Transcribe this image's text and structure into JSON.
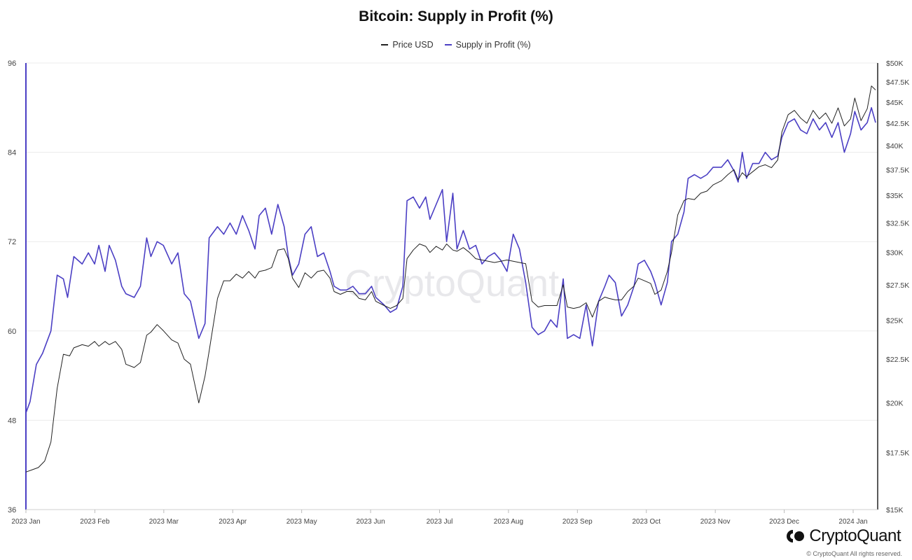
{
  "title": "Bitcoin: Supply in Profit (%)",
  "legend": [
    {
      "name": "Price USD",
      "color": "#222222"
    },
    {
      "name": "Supply in Profit (%)",
      "color": "#4b3fc4"
    }
  ],
  "watermark": "CryptoQuant",
  "brand": "CryptoQuant",
  "copyright": "© CryptoQuant All rights reserved.",
  "chart_data": {
    "type": "line",
    "grid": true,
    "legend_position": "top-center",
    "x_ticks": [
      "2023 Jan",
      "2023 Feb",
      "2023 Mar",
      "2023 Apr",
      "2023 May",
      "2023 Jun",
      "2023 Jul",
      "2023 Aug",
      "2023 Sep",
      "2023 Oct",
      "2023 Nov",
      "2023 Dec",
      "2024 Jan"
    ],
    "y_left": {
      "ticks": [
        "96",
        "84",
        "72",
        "60",
        "48",
        "36"
      ],
      "range": [
        36,
        96
      ]
    },
    "y_right": {
      "ticks": [
        "$50K",
        "$47.5K",
        "$45K",
        "$42.5K",
        "$40K",
        "$37.5K",
        "$35K",
        "$32.5K",
        "$30K",
        "$27.5K",
        "$25K",
        "$22.5K",
        "$20K",
        "$17.5K",
        "$15K"
      ],
      "range": [
        15000,
        50000
      ],
      "scale": "log"
    },
    "series": [
      {
        "name": "Supply in Profit (%)",
        "axis": "left",
        "color": "#4b3fc4",
        "points": [
          [
            0,
            49.0
          ],
          [
            2,
            50.5
          ],
          [
            5,
            55.5
          ],
          [
            8,
            57.0
          ],
          [
            12,
            60.0
          ],
          [
            15,
            67.5
          ],
          [
            18,
            67.0
          ],
          [
            20,
            64.5
          ],
          [
            23,
            70.0
          ],
          [
            27,
            69.0
          ],
          [
            30,
            70.5
          ],
          [
            33,
            69.0
          ],
          [
            35,
            71.5
          ],
          [
            38,
            68.0
          ],
          [
            40,
            71.5
          ],
          [
            43,
            69.5
          ],
          [
            46,
            66.0
          ],
          [
            48,
            65.0
          ],
          [
            52,
            64.5
          ],
          [
            55,
            66.0
          ],
          [
            58,
            72.5
          ],
          [
            60,
            70.0
          ],
          [
            63,
            72.0
          ],
          [
            66,
            71.5
          ],
          [
            70,
            69.0
          ],
          [
            73,
            70.5
          ],
          [
            76,
            65.0
          ],
          [
            79,
            64.0
          ],
          [
            83,
            59.0
          ],
          [
            86,
            61.0
          ],
          [
            88,
            72.5
          ],
          [
            92,
            74.0
          ],
          [
            95,
            73.0
          ],
          [
            98,
            74.5
          ],
          [
            101,
            73.0
          ],
          [
            104,
            75.5
          ],
          [
            107,
            73.5
          ],
          [
            110,
            71.0
          ],
          [
            112,
            75.5
          ],
          [
            115,
            76.5
          ],
          [
            118,
            73.0
          ],
          [
            121,
            77.0
          ],
          [
            124,
            74.0
          ],
          [
            126,
            70.0
          ],
          [
            128,
            67.5
          ],
          [
            131,
            69.0
          ],
          [
            134,
            73.0
          ],
          [
            137,
            74.0
          ],
          [
            140,
            70.0
          ],
          [
            143,
            70.5
          ],
          [
            146,
            68.0
          ],
          [
            148,
            66.0
          ],
          [
            151,
            65.5
          ],
          [
            154,
            65.5
          ],
          [
            157,
            66.0
          ],
          [
            160,
            65.0
          ],
          [
            163,
            65.0
          ],
          [
            166,
            66.0
          ],
          [
            168,
            64.5
          ],
          [
            172,
            63.5
          ],
          [
            175,
            62.5
          ],
          [
            178,
            63.0
          ],
          [
            181,
            66.0
          ],
          [
            183,
            77.5
          ],
          [
            186,
            78.0
          ],
          [
            189,
            76.5
          ],
          [
            192,
            78.0
          ],
          [
            194,
            75.0
          ],
          [
            197,
            77.0
          ],
          [
            200,
            79.0
          ],
          [
            202,
            72.0
          ],
          [
            205,
            78.5
          ],
          [
            207,
            71.0
          ],
          [
            210,
            73.5
          ],
          [
            213,
            71.0
          ],
          [
            216,
            71.5
          ],
          [
            219,
            69.0
          ],
          [
            222,
            70.0
          ],
          [
            225,
            70.5
          ],
          [
            228,
            69.5
          ],
          [
            231,
            68.0
          ],
          [
            234,
            73.0
          ],
          [
            237,
            71.0
          ],
          [
            240,
            66.5
          ],
          [
            243,
            60.5
          ],
          [
            246,
            59.5
          ],
          [
            249,
            60.0
          ],
          [
            252,
            61.5
          ],
          [
            255,
            60.5
          ],
          [
            258,
            67.0
          ],
          [
            260,
            59.0
          ],
          [
            263,
            59.5
          ],
          [
            266,
            59.0
          ],
          [
            269,
            63.5
          ],
          [
            272,
            58.0
          ],
          [
            275,
            64.0
          ],
          [
            278,
            66.0
          ],
          [
            280,
            67.5
          ],
          [
            283,
            66.5
          ],
          [
            286,
            62.0
          ],
          [
            289,
            63.5
          ],
          [
            292,
            66.0
          ],
          [
            294,
            69.0
          ],
          [
            297,
            69.5
          ],
          [
            300,
            68.0
          ],
          [
            302,
            66.5
          ],
          [
            305,
            63.5
          ],
          [
            308,
            66.5
          ],
          [
            310,
            72.0
          ],
          [
            313,
            73.0
          ],
          [
            316,
            76.0
          ],
          [
            318,
            80.5
          ],
          [
            321,
            81.0
          ],
          [
            324,
            80.5
          ],
          [
            327,
            81.0
          ],
          [
            330,
            82.0
          ],
          [
            334,
            82.0
          ],
          [
            337,
            83.0
          ],
          [
            340,
            81.5
          ],
          [
            342,
            80.0
          ],
          [
            344,
            84.0
          ],
          [
            346,
            80.5
          ],
          [
            349,
            82.5
          ],
          [
            352,
            82.5
          ],
          [
            355,
            84.0
          ],
          [
            358,
            83.0
          ],
          [
            361,
            83.5
          ],
          [
            363,
            86.0
          ],
          [
            366,
            88.0
          ],
          [
            369,
            88.5
          ],
          [
            372,
            87.0
          ],
          [
            375,
            86.5
          ],
          [
            378,
            88.5
          ],
          [
            381,
            87.0
          ],
          [
            384,
            88.0
          ],
          [
            387,
            86.0
          ],
          [
            390,
            88.0
          ],
          [
            393,
            84.0
          ],
          [
            396,
            86.5
          ],
          [
            398,
            89.5
          ],
          [
            401,
            87.0
          ],
          [
            404,
            88.0
          ],
          [
            406,
            90.0
          ],
          [
            408,
            88.0
          ]
        ]
      },
      {
        "name": "Price USD",
        "axis": "right",
        "color": "#222222",
        "points": [
          [
            0,
            16600
          ],
          [
            3,
            16700
          ],
          [
            6,
            16800
          ],
          [
            9,
            17100
          ],
          [
            12,
            18000
          ],
          [
            15,
            20800
          ],
          [
            18,
            22800
          ],
          [
            21,
            22700
          ],
          [
            23,
            23200
          ],
          [
            27,
            23400
          ],
          [
            30,
            23300
          ],
          [
            33,
            23600
          ],
          [
            35,
            23300
          ],
          [
            38,
            23600
          ],
          [
            40,
            23400
          ],
          [
            43,
            23600
          ],
          [
            46,
            23100
          ],
          [
            48,
            22200
          ],
          [
            52,
            22000
          ],
          [
            55,
            22300
          ],
          [
            58,
            24000
          ],
          [
            60,
            24200
          ],
          [
            63,
            24700
          ],
          [
            66,
            24300
          ],
          [
            70,
            23700
          ],
          [
            73,
            23500
          ],
          [
            76,
            22500
          ],
          [
            79,
            22200
          ],
          [
            83,
            20000
          ],
          [
            86,
            21500
          ],
          [
            88,
            23000
          ],
          [
            92,
            26500
          ],
          [
            95,
            27800
          ],
          [
            98,
            27800
          ],
          [
            101,
            28300
          ],
          [
            104,
            28000
          ],
          [
            107,
            28500
          ],
          [
            110,
            28000
          ],
          [
            112,
            28500
          ],
          [
            115,
            28600
          ],
          [
            118,
            28800
          ],
          [
            121,
            30200
          ],
          [
            124,
            30300
          ],
          [
            126,
            29500
          ],
          [
            128,
            28000
          ],
          [
            131,
            27300
          ],
          [
            134,
            28400
          ],
          [
            137,
            28000
          ],
          [
            140,
            28500
          ],
          [
            143,
            28600
          ],
          [
            146,
            28000
          ],
          [
            148,
            27000
          ],
          [
            151,
            26800
          ],
          [
            154,
            27000
          ],
          [
            157,
            27000
          ],
          [
            160,
            26500
          ],
          [
            163,
            26400
          ],
          [
            166,
            27000
          ],
          [
            168,
            26300
          ],
          [
            172,
            26000
          ],
          [
            175,
            25800
          ],
          [
            178,
            26000
          ],
          [
            181,
            26500
          ],
          [
            183,
            29500
          ],
          [
            186,
            30200
          ],
          [
            189,
            30700
          ],
          [
            192,
            30500
          ],
          [
            194,
            30000
          ],
          [
            197,
            30500
          ],
          [
            200,
            30200
          ],
          [
            202,
            30700
          ],
          [
            205,
            30200
          ],
          [
            207,
            30100
          ],
          [
            210,
            30400
          ],
          [
            213,
            30000
          ],
          [
            216,
            29500
          ],
          [
            219,
            29400
          ],
          [
            222,
            29300
          ],
          [
            225,
            29200
          ],
          [
            228,
            29300
          ],
          [
            231,
            29400
          ],
          [
            234,
            29300
          ],
          [
            237,
            29200
          ],
          [
            240,
            29100
          ],
          [
            243,
            26300
          ],
          [
            246,
            25900
          ],
          [
            249,
            26000
          ],
          [
            252,
            26000
          ],
          [
            255,
            26000
          ],
          [
            258,
            27500
          ],
          [
            260,
            25900
          ],
          [
            263,
            25800
          ],
          [
            266,
            25900
          ],
          [
            269,
            26200
          ],
          [
            272,
            25200
          ],
          [
            275,
            26300
          ],
          [
            278,
            26600
          ],
          [
            280,
            26500
          ],
          [
            283,
            26400
          ],
          [
            286,
            26400
          ],
          [
            289,
            27000
          ],
          [
            292,
            27400
          ],
          [
            294,
            28000
          ],
          [
            297,
            27800
          ],
          [
            300,
            27600
          ],
          [
            302,
            26800
          ],
          [
            305,
            27100
          ],
          [
            308,
            28500
          ],
          [
            310,
            30000
          ],
          [
            313,
            33200
          ],
          [
            316,
            34500
          ],
          [
            318,
            34700
          ],
          [
            321,
            34600
          ],
          [
            324,
            35200
          ],
          [
            327,
            35400
          ],
          [
            330,
            36000
          ],
          [
            334,
            36400
          ],
          [
            337,
            37000
          ],
          [
            340,
            37500
          ],
          [
            342,
            36500
          ],
          [
            344,
            37200
          ],
          [
            346,
            36800
          ],
          [
            349,
            37300
          ],
          [
            352,
            37800
          ],
          [
            355,
            38000
          ],
          [
            358,
            37700
          ],
          [
            361,
            38500
          ],
          [
            363,
            41500
          ],
          [
            366,
            43500
          ],
          [
            369,
            44000
          ],
          [
            372,
            43100
          ],
          [
            375,
            42500
          ],
          [
            378,
            44000
          ],
          [
            381,
            43000
          ],
          [
            384,
            43700
          ],
          [
            387,
            42500
          ],
          [
            390,
            44300
          ],
          [
            393,
            42200
          ],
          [
            396,
            43000
          ],
          [
            398,
            45500
          ],
          [
            401,
            42800
          ],
          [
            404,
            44200
          ],
          [
            406,
            47000
          ],
          [
            408,
            46500
          ]
        ]
      }
    ]
  }
}
